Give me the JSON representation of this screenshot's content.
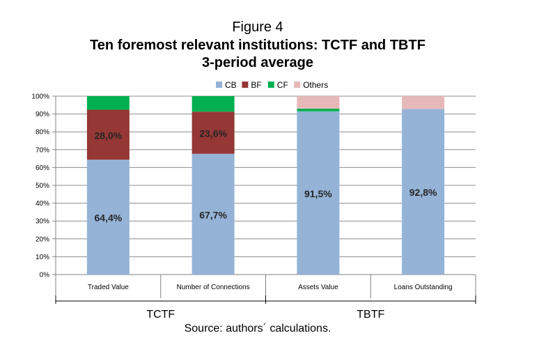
{
  "figure_label": "Figure 4",
  "title_line1": "Ten foremost relevant institutions: TCTF and TBTF",
  "title_line2": "3-period average",
  "source": "Source: authors´ calculations.",
  "colors": {
    "CB": "#95b3d7",
    "BF": "#953735",
    "CF": "#00b050",
    "Others": "#e6b9b8"
  },
  "chart_data": {
    "type": "bar",
    "stacked": true,
    "categories": [
      "Traded Value",
      "Number of Connections",
      "Assets Value",
      "Loans Outstanding"
    ],
    "groups": [
      {
        "label": "TCTF",
        "categories": [
          "Traded Value",
          "Number of Connections"
        ]
      },
      {
        "label": "TBTF",
        "categories": [
          "Assets Value",
          "Loans Outstanding"
        ]
      }
    ],
    "series": [
      {
        "name": "CB",
        "values": [
          64.4,
          67.7,
          91.5,
          92.8
        ],
        "labels": [
          "64,4%",
          "67,7%",
          "91,5%",
          "92,8%"
        ]
      },
      {
        "name": "BF",
        "values": [
          28.0,
          23.6,
          0.0,
          0.0
        ],
        "labels": [
          "28,0%",
          "23,6%",
          "",
          ""
        ]
      },
      {
        "name": "CF",
        "values": [
          7.6,
          8.7,
          1.5,
          0.0
        ],
        "labels": [
          "",
          "",
          "",
          ""
        ]
      },
      {
        "name": "Others",
        "values": [
          0.0,
          0.0,
          7.0,
          7.2
        ],
        "labels": [
          "",
          "",
          "",
          ""
        ]
      }
    ],
    "yticks": [
      "0%",
      "10%",
      "20%",
      "30%",
      "40%",
      "50%",
      "60%",
      "70%",
      "80%",
      "90%",
      "100%"
    ],
    "ylim": [
      0,
      100
    ],
    "grid": true,
    "legend_position": "top"
  }
}
